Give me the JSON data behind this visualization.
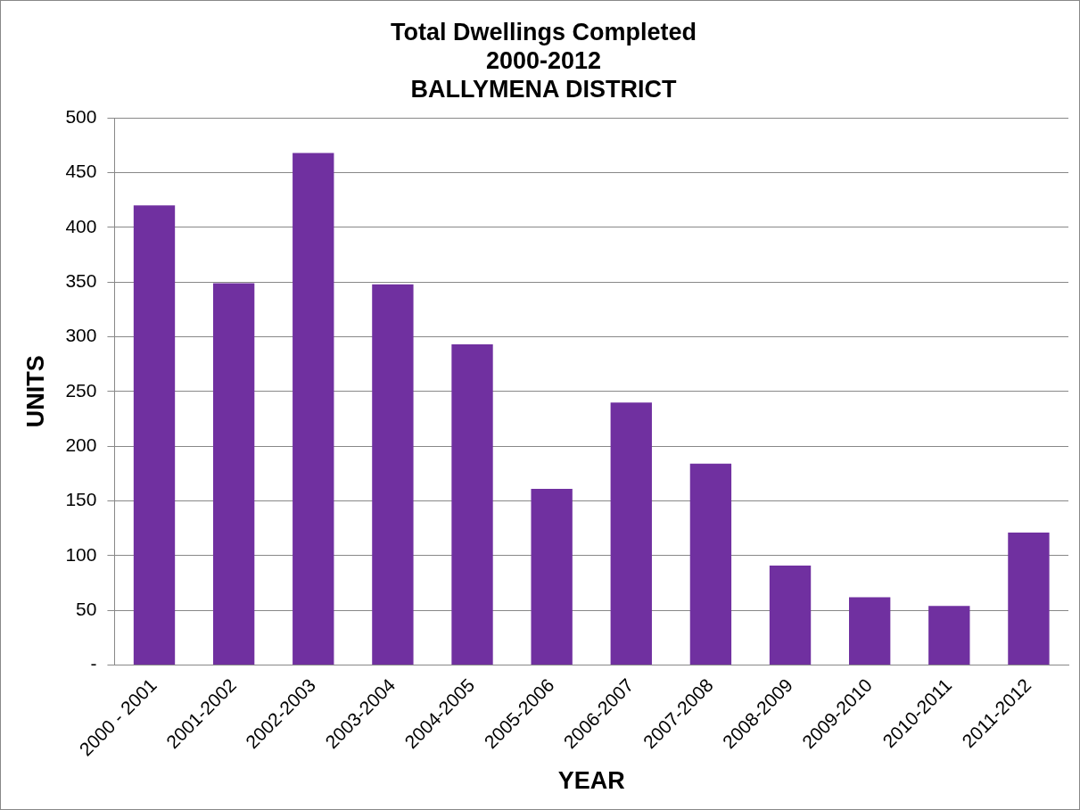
{
  "chart_data": {
    "type": "bar",
    "title": "Total Dwellings Completed\n2000-2012\nBALLYMENA DISTRICT",
    "xlabel": "YEAR",
    "ylabel": "UNITS",
    "categories": [
      "2000 - 2001",
      "2001-2002",
      "2002-2003",
      "2003-2004",
      "2004-2005",
      "2005-2006",
      "2006-2007",
      "2007-2008",
      "2008-2009",
      "2009-2010",
      "2010-2011",
      "2011-2012"
    ],
    "values": [
      420,
      349,
      468,
      348,
      293,
      161,
      240,
      184,
      91,
      62,
      54,
      121
    ],
    "color": "#7030a0",
    "ylim": [
      0,
      500
    ],
    "yticks": [
      {
        "value": 0,
        "label": "-"
      },
      50,
      100,
      150,
      200,
      250,
      300,
      350,
      400,
      450,
      500
    ],
    "grid": "y",
    "legend": false
  }
}
